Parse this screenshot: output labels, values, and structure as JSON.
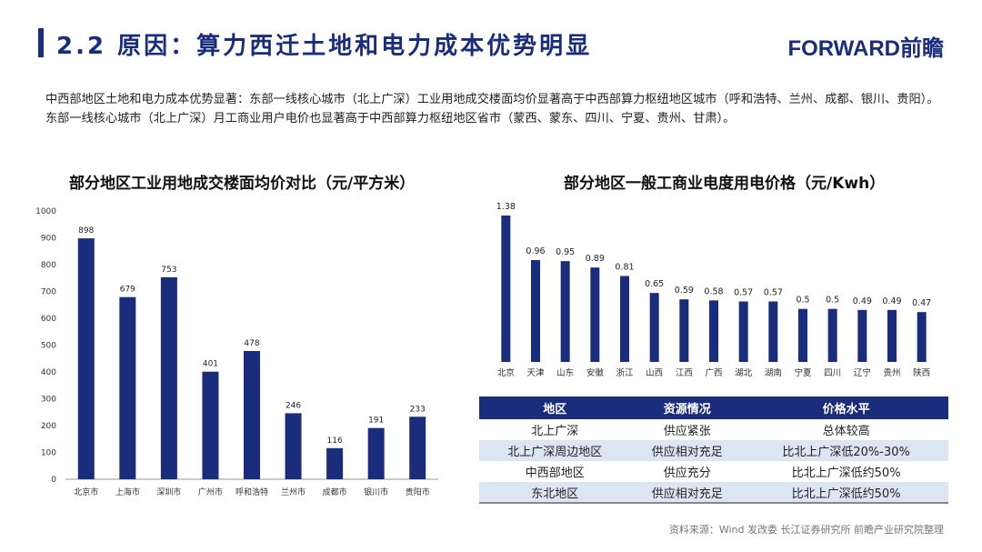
{
  "header": {
    "title": "2.2 原因：算力西迁土地和电力成本优势明显",
    "logo": "FORWARD前瞻"
  },
  "intro": "中西部地区土地和电力成本优势显著：东部一线核心城市（北上广深）工业用地成交楼面均价显著高于中西部算力枢纽地区城市（呼和浩特、兰州、成都、银川、贵阳）。东部一线核心城市（北上广深）月工商业用户电价也显著高于中西部算力枢纽地区省市（蒙西、蒙东、四川、宁夏、贵州、甘肃）。",
  "colors": {
    "bar": "#1a2d7c",
    "header": "#1a2d7c",
    "alt_row": "#dce6f3"
  },
  "chart_data": [
    {
      "type": "bar",
      "title": "部分地区工业用地成交楼面均价对比（元/平方米）",
      "categories": [
        "北京市",
        "上海市",
        "深圳市",
        "广州市",
        "呼和浩特",
        "兰州市",
        "成都市",
        "银川市",
        "贵阳市"
      ],
      "values": [
        898,
        679,
        753,
        401,
        478,
        246,
        116,
        191,
        233
      ],
      "ylim": [
        0,
        1000
      ],
      "yticks": [
        0,
        100,
        200,
        300,
        400,
        500,
        600,
        700,
        800,
        900,
        1000
      ],
      "grid": false
    },
    {
      "type": "bar",
      "title": "部分地区一般工商业电度用电价格（元/Kwh）",
      "categories": [
        "北京",
        "天津",
        "山东",
        "安徽",
        "浙江",
        "山西",
        "江西",
        "广西",
        "湖北",
        "湖南",
        "宁夏",
        "四川",
        "辽宁",
        "贵州",
        "陕西"
      ],
      "values": [
        1.38,
        0.96,
        0.95,
        0.89,
        0.81,
        0.65,
        0.59,
        0.58,
        0.57,
        0.57,
        0.5,
        0.5,
        0.49,
        0.49,
        0.47
      ],
      "grid": false
    }
  ],
  "table": {
    "headers": [
      "地区",
      "资源情况",
      "价格水平"
    ],
    "rows": [
      [
        "北上广深",
        "供应紧张",
        "总体较高"
      ],
      [
        "北上广深周边地区",
        "供应相对充足",
        "比北上广深低20%-30%"
      ],
      [
        "中西部地区",
        "供应充分",
        "比北上广深低约50%"
      ],
      [
        "东北地区",
        "供应相对充足",
        "比北上广深低约50%"
      ]
    ]
  },
  "source": "资料来源：Wind 发改委 长江证券研究所 前瞻产业研究院整理"
}
